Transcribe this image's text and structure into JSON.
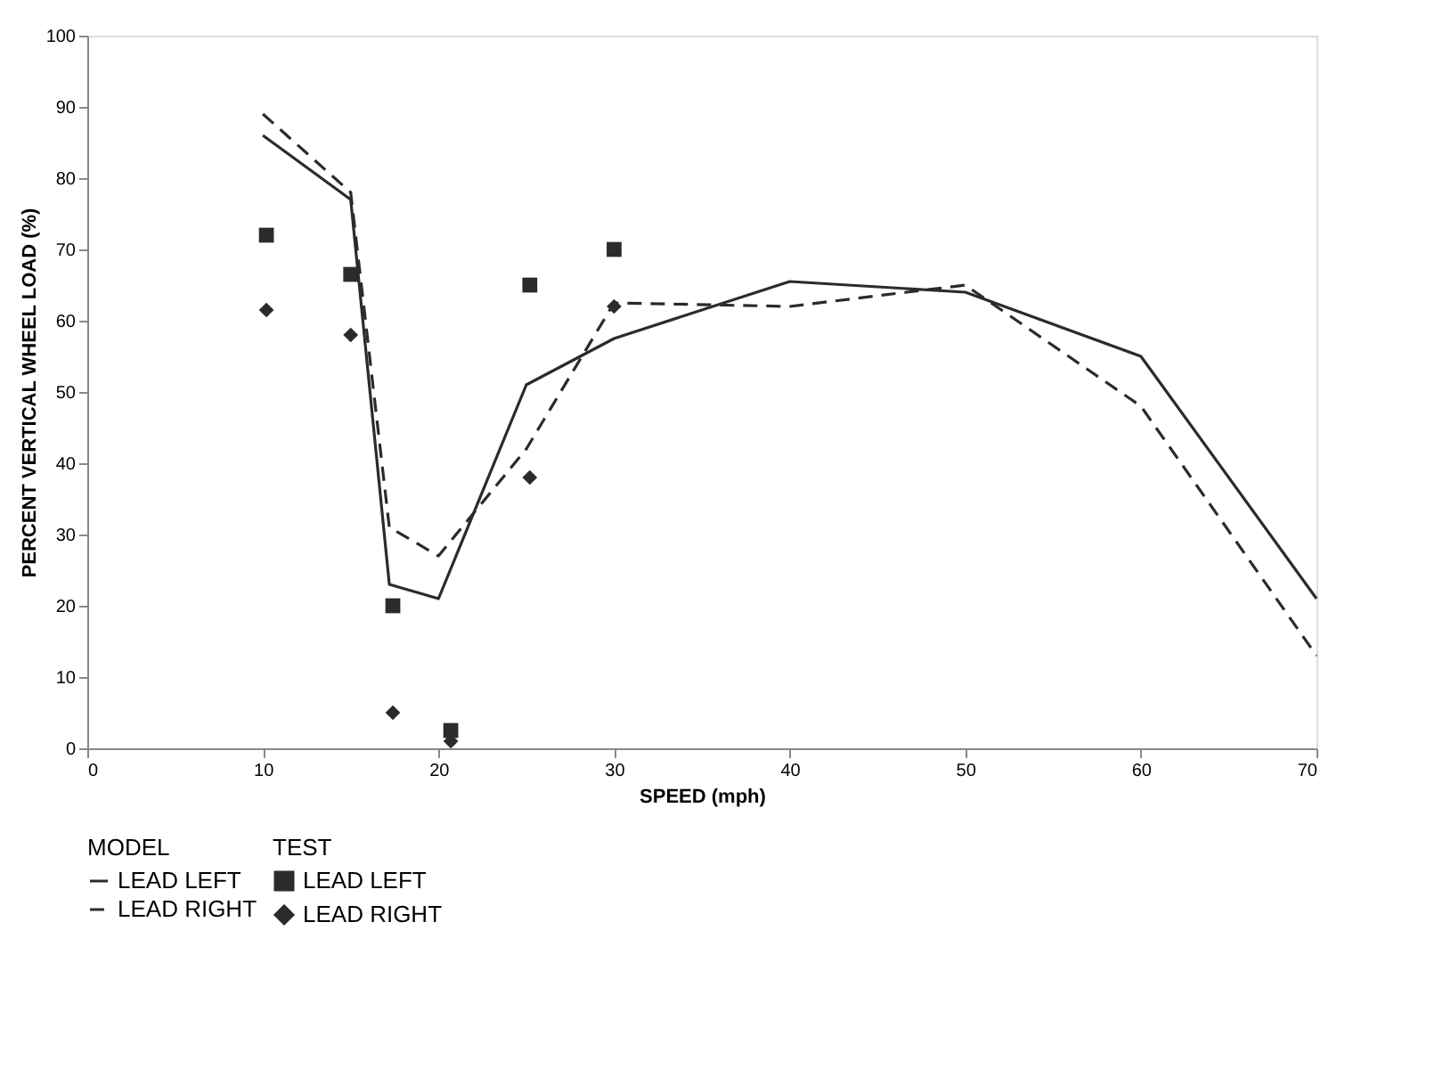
{
  "chart_data": {
    "type": "line",
    "xlabel": "SPEED (mph)",
    "ylabel": "PERCENT VERTICAL WHEEL LOAD (%)",
    "legend_title": [
      "MODEL",
      "TEST"
    ],
    "xlim": [
      0,
      70
    ],
    "xticks": [
      0,
      10,
      20,
      30,
      40,
      50,
      60,
      70
    ],
    "ylim": [
      0,
      100
    ],
    "yticks": [
      0,
      10,
      20,
      30,
      40,
      50,
      60,
      70,
      80,
      90,
      100
    ],
    "grid": false,
    "legend": "bottom",
    "series": [
      {
        "name": "LEAD LEFT",
        "line_style": "solid",
        "color": "#2b2b2b",
        "x": [
          10,
          15,
          17.2,
          20,
          25,
          30,
          40,
          50,
          60,
          70
        ],
        "values": [
          86,
          77,
          23,
          21,
          51,
          57.5,
          65.5,
          64,
          55,
          21
        ]
      },
      {
        "name": "LEAD RIGHT",
        "line_style": "dashed",
        "color": "#2b2b2b",
        "x": [
          10,
          15,
          17.2,
          20,
          25,
          30,
          40,
          50,
          60,
          70
        ],
        "values": [
          89,
          78,
          31,
          27,
          42,
          62.5,
          62,
          65,
          48,
          13
        ]
      },
      {
        "name": "LEAD LEFT",
        "type": "scatter",
        "marker": "square",
        "color": "#2b2b2b",
        "x": [
          10.2,
          15,
          17.4,
          20.7,
          25.2,
          30
        ],
        "values": [
          72,
          66.5,
          20,
          2.5,
          65,
          70
        ]
      },
      {
        "name": "LEAD RIGHT",
        "type": "scatter",
        "marker": "diamond",
        "color": "#2b2b2b",
        "x": [
          10.2,
          15,
          17.4,
          20.7,
          25.2,
          30
        ],
        "values": [
          61.5,
          58,
          5,
          1,
          38,
          62
        ]
      }
    ]
  }
}
